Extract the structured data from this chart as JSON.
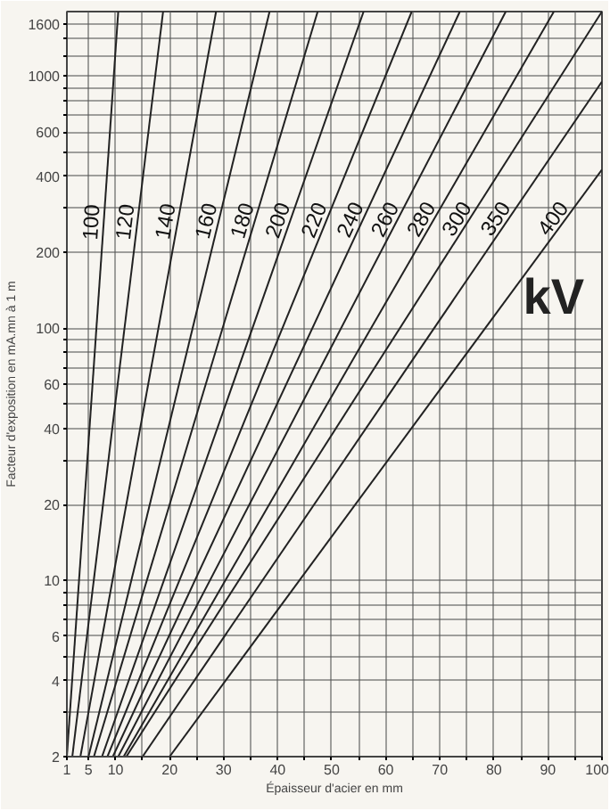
{
  "chart_data": {
    "type": "line",
    "xlabel": "Épaisseur d'acier en mm",
    "ylabel": "Facteur d'exposition en mA.mn à 1 m",
    "log": "y",
    "grid": true,
    "xlim": [
      1,
      100
    ],
    "ylim": [
      2,
      1800
    ],
    "xticks": [
      1,
      5,
      10,
      {
        "value": 15,
        "label": null
      },
      20,
      {
        "value": 25,
        "label": null
      },
      30,
      {
        "value": 35,
        "label": null
      },
      40,
      {
        "value": 45,
        "label": null
      },
      50,
      {
        "value": 55,
        "label": null
      },
      60,
      {
        "value": 65,
        "label": null
      },
      70,
      {
        "value": 75,
        "label": null
      },
      80,
      {
        "value": 85,
        "label": null
      },
      90,
      {
        "value": 95,
        "label": null
      },
      100
    ],
    "yticks": [
      2,
      {
        "value": 3,
        "label": null
      },
      4,
      {
        "value": 5,
        "label": null
      },
      6,
      {
        "value": 7,
        "label": null
      },
      {
        "value": 8,
        "label": null
      },
      {
        "value": 9,
        "label": null
      },
      10,
      20,
      {
        "value": 30,
        "label": null
      },
      40,
      {
        "value": 50,
        "label": null
      },
      60,
      {
        "value": 70,
        "label": null
      },
      {
        "value": 80,
        "label": null
      },
      {
        "value": 90,
        "label": null
      },
      100,
      200,
      {
        "value": 300,
        "label": null
      },
      400,
      {
        "value": 500,
        "label": null
      },
      600,
      {
        "value": 700,
        "label": null
      },
      {
        "value": 800,
        "label": null
      },
      {
        "value": 900,
        "label": null
      },
      1000,
      {
        "value": 1200,
        "label": null
      },
      {
        "value": 1400,
        "label": null
      },
      1600
    ],
    "annotations": [
      "kV"
    ],
    "series": [
      {
        "name": "100",
        "color": "#222222",
        "x": [
          1,
          10.5
        ],
        "values": [
          2,
          1800
        ]
      },
      {
        "name": "120",
        "color": "#222222",
        "x": [
          2,
          18.8
        ],
        "values": [
          2,
          1800
        ]
      },
      {
        "name": "140",
        "color": "#222222",
        "x": [
          3.5,
          28.6
        ],
        "values": [
          2,
          1800
        ]
      },
      {
        "name": "160",
        "color": "#222222",
        "x": [
          5,
          38.5
        ],
        "values": [
          2,
          1800
        ]
      },
      {
        "name": "180",
        "color": "#222222",
        "x": [
          6,
          47.4
        ],
        "values": [
          2,
          1800
        ]
      },
      {
        "name": "200",
        "color": "#222222",
        "x": [
          7.5,
          55.9
        ],
        "values": [
          2,
          1800
        ]
      },
      {
        "name": "220",
        "color": "#222222",
        "x": [
          8.5,
          64.8
        ],
        "values": [
          2,
          1800
        ]
      },
      {
        "name": "240",
        "color": "#222222",
        "x": [
          9.5,
          73.7
        ],
        "values": [
          2,
          1800
        ]
      },
      {
        "name": "260",
        "color": "#222222",
        "x": [
          10.5,
          82.2
        ],
        "values": [
          2,
          1800
        ]
      },
      {
        "name": "280",
        "color": "#222222",
        "x": [
          11.5,
          91.1
        ],
        "values": [
          2,
          1800
        ]
      },
      {
        "name": "300",
        "color": "#222222",
        "x": [
          12,
          100
        ],
        "values": [
          2,
          1800
        ]
      },
      {
        "name": "350",
        "color": "#222222",
        "x": [
          15,
          100
        ],
        "values": [
          2,
          950
        ]
      },
      {
        "name": "400",
        "color": "#222222",
        "x": [
          20,
          100
        ],
        "values": [
          2,
          425
        ]
      }
    ]
  }
}
